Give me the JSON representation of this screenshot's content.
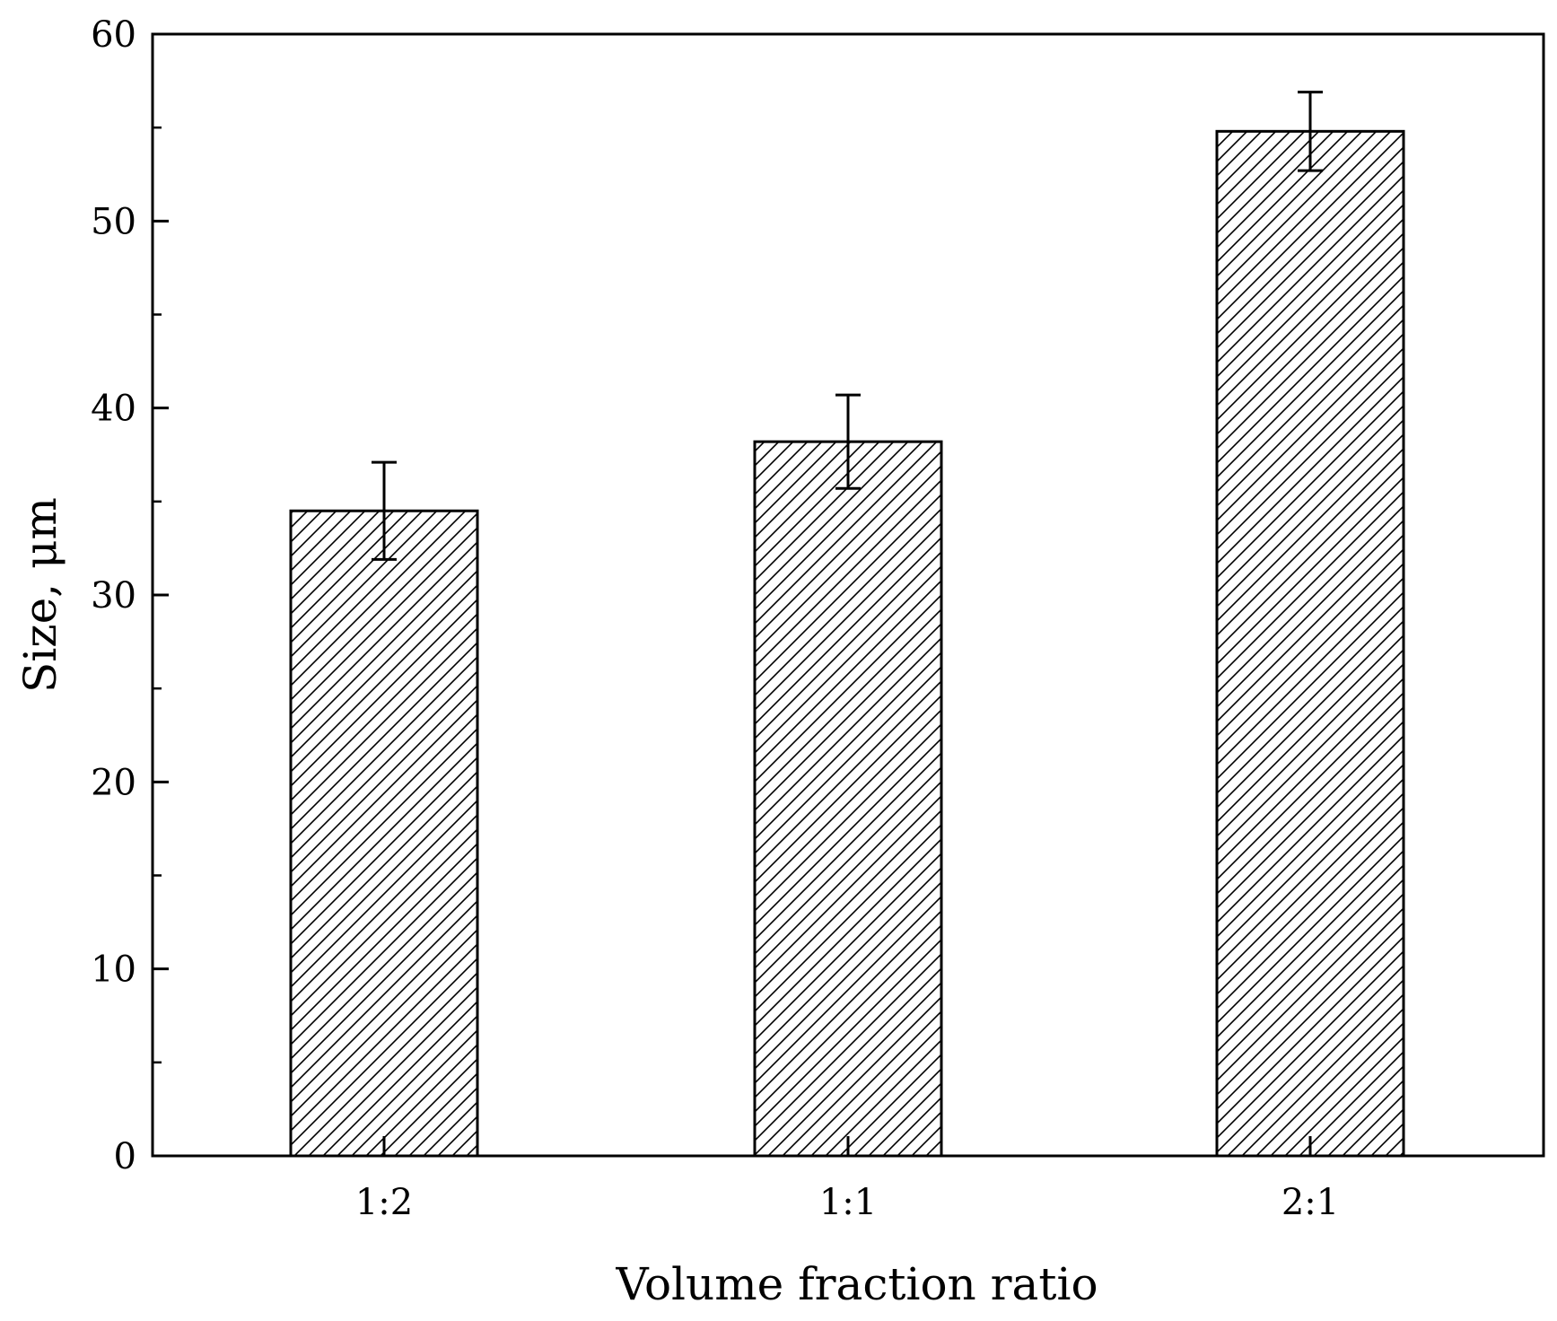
{
  "chart_data": {
    "type": "bar",
    "categories": [
      "1:2",
      "1:1",
      "2:1"
    ],
    "values": [
      34.5,
      38.2,
      54.8
    ],
    "errors": [
      2.6,
      2.5,
      2.1
    ],
    "title": "",
    "xlabel": "Volume fraction ratio",
    "ylabel": "Size, μm",
    "ylim": [
      0,
      60
    ],
    "yticks": [
      0,
      10,
      20,
      30,
      40,
      50,
      60
    ],
    "grid": false,
    "bar_fill": "hatched",
    "colors": {
      "line": "#000000",
      "background": "#ffffff"
    }
  }
}
